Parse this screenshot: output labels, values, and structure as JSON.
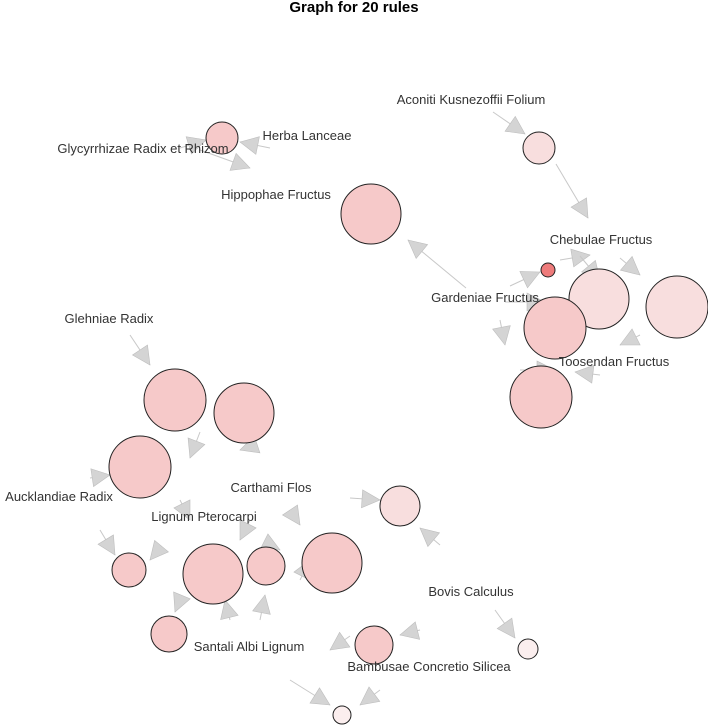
{
  "title": "Graph for 20 rules",
  "labels": {
    "aconiti": "Aconiti Kusnezoffii Folium",
    "herba": "Herba Lanceae",
    "glycyrrhizae": "Glycyrrhizae Radix et Rhizom",
    "hippophae": "Hippophae Fructus",
    "chebulae": "Chebulae Fructus",
    "gardeniae": "Gardeniae Fructus",
    "toosendan": "Toosendan Fructus",
    "glehniae": "Glehniae Radix",
    "carthami": "Carthami Flos",
    "aucklandiae": "Aucklandiae Radix",
    "lignum": "Lignum Pterocarpi",
    "bovis": "Bovis Calculus",
    "santali": "Santali Albi Lignum",
    "bambusae": "Bambusae Concretio Silicea"
  },
  "colors": {
    "node_fill": "#f6c9c9",
    "node_fill_light": "#f8dede",
    "node_fill_pale": "#fbeeee",
    "node_fill_strong": "#ee7b7b",
    "edge": "#c8c8c8",
    "arrow": "#d4d4d4"
  }
}
